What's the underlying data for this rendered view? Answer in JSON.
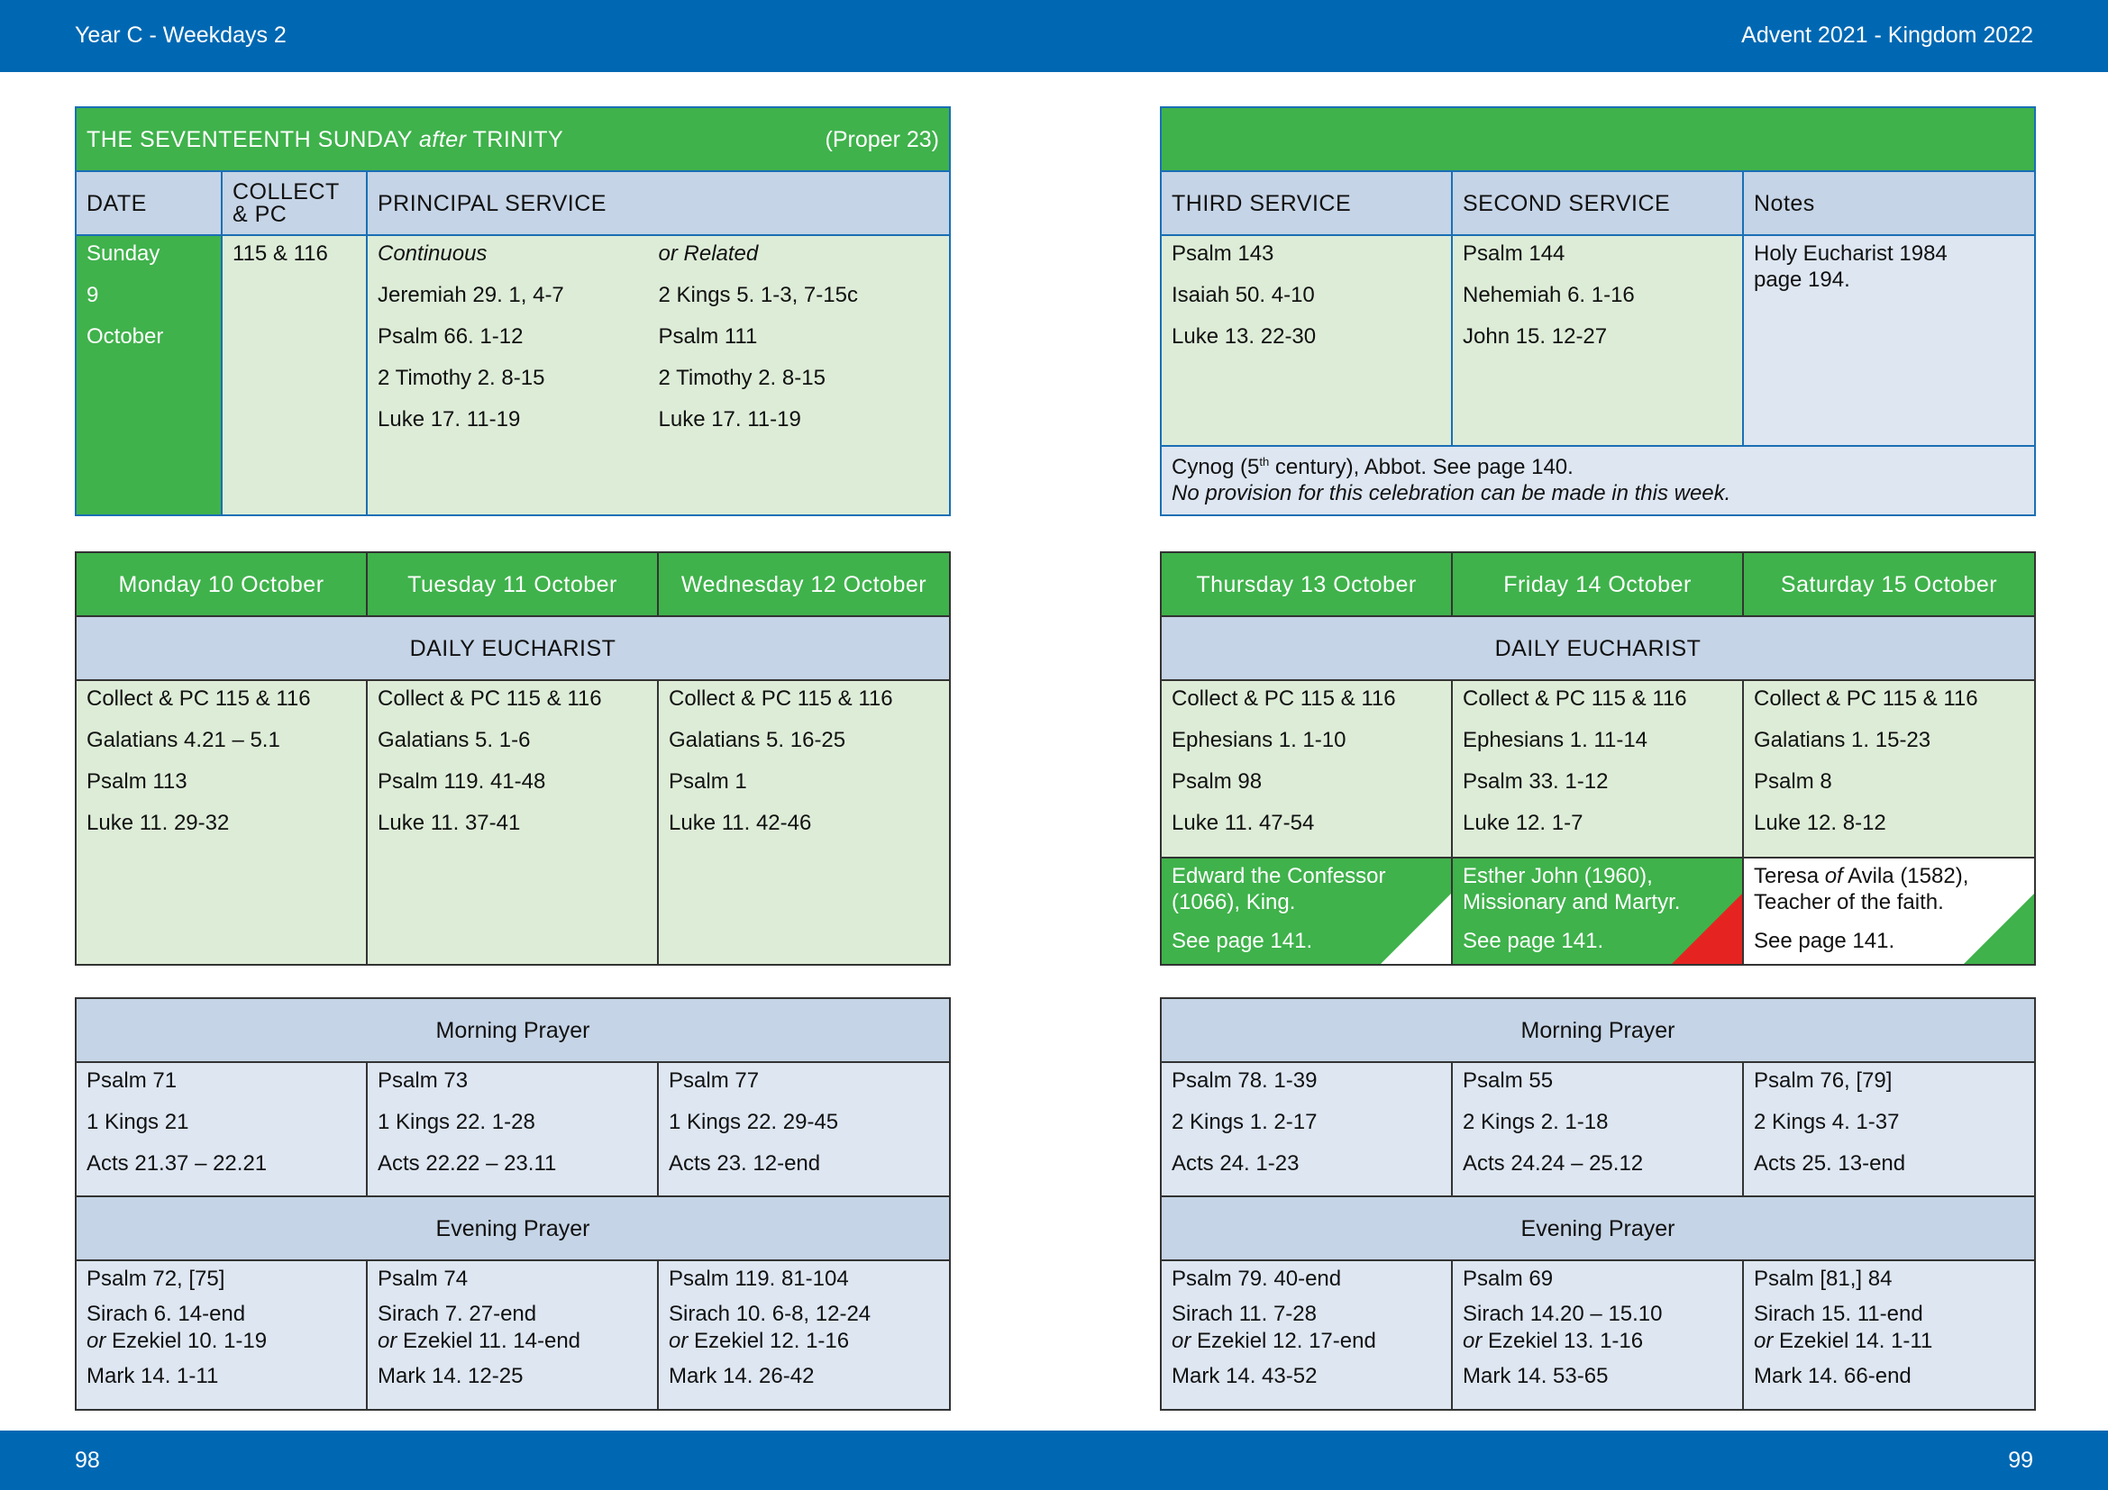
{
  "header": {
    "left": "Year C - Weekdays 2",
    "right": "Advent  2021 - Kingdom 2022"
  },
  "footer": {
    "left_page": "98",
    "right_page": "99"
  },
  "sunday": {
    "title_pre": "THE SEVENTEENTH SUNDAY ",
    "title_after": "after",
    "title_post": " TRINITY",
    "proper": "(Proper 23)",
    "col_date": "DATE",
    "col_collect_1": "COLLECT",
    "col_collect_2": "& PC",
    "col_principal": "PRINCIPAL SERVICE",
    "date_lines": [
      "Sunday",
      "9",
      "October"
    ],
    "collect": "115 & 116",
    "continuous_label": "Continuous",
    "related_label": "or Related",
    "continuous": [
      "Jeremiah 29. 1, 4-7",
      "Psalm 66. 1-12",
      "2 Timothy 2. 8-15",
      "Luke 17. 11-19"
    ],
    "related": [
      "2 Kings 5. 1-3, 7-15c",
      "Psalm 111",
      "2 Timothy 2. 8-15",
      "Luke 17. 11-19"
    ]
  },
  "sunday_right": {
    "col_third": "THIRD SERVICE",
    "col_second": "SECOND SERVICE",
    "col_notes": "Notes",
    "third": [
      "Psalm 143",
      "Isaiah 50. 4-10",
      "Luke 13. 22-30"
    ],
    "second": [
      "Psalm 144",
      "Nehemiah 6. 1-16",
      "John 15. 12-27"
    ],
    "notes": "Holy Eucharist 1984 page 194.",
    "cynog_pre": "Cynog (5",
    "cynog_sup": "th",
    "cynog_post": " century), Abbot. See page 140.",
    "cynog_note": "No provision for this celebration can be made in this week."
  },
  "daily_eucharist_label": "DAILY EUCHARIST",
  "morning_prayer_label": "Morning Prayer",
  "evening_prayer_label": "Evening Prayer",
  "days": [
    {
      "name": "Monday 10 October",
      "eucharist": [
        "Collect & PC 115 & 116",
        "Galatians 4.21 – 5.1",
        "Psalm 113",
        "Luke 11. 29-32"
      ],
      "mp": [
        "Psalm 71",
        "1 Kings 21",
        "Acts 21.37 – 22.21"
      ],
      "ep_psalm": "Psalm 72, [75]",
      "ep_reading1": "Sirach 6. 14-end",
      "ep_or": "or",
      "ep_reading2": " Ezekiel 10. 1-19",
      "ep_nt": "Mark 14. 1-11"
    },
    {
      "name": "Tuesday 11 October",
      "eucharist": [
        "Collect & PC 115 & 116",
        "Galatians 5. 1-6",
        "Psalm 119. 41-48",
        "Luke 11. 37-41"
      ],
      "mp": [
        "Psalm 73",
        "1 Kings 22. 1-28",
        "Acts 22.22 – 23.11"
      ],
      "ep_psalm": "Psalm 74",
      "ep_reading1": "Sirach 7. 27-end",
      "ep_or": "or",
      "ep_reading2": " Ezekiel 11. 14-end",
      "ep_nt": "Mark 14. 12-25"
    },
    {
      "name": "Wednesday 12 October",
      "eucharist": [
        "Collect & PC 115 & 116",
        "Galatians 5. 16-25",
        "Psalm 1",
        "Luke 11. 42-46"
      ],
      "mp": [
        "Psalm 77",
        "1 Kings 22. 29-45",
        "Acts 23. 12-end"
      ],
      "ep_psalm": "Psalm 119. 81-104",
      "ep_reading1": "Sirach 10. 6-8, 12-24",
      "ep_or": "or",
      "ep_reading2": " Ezekiel 12. 1-16",
      "ep_nt": "Mark 14. 26-42"
    },
    {
      "name": "Thursday 13 October",
      "eucharist": [
        "Collect & PC 115 & 116",
        "Ephesians 1. 1-10",
        "Psalm 98",
        "Luke 11. 47-54"
      ],
      "commem_1": "Edward the Confessor",
      "commem_2": "(1066), King.",
      "commem_see": "See page 141.",
      "mp": [
        "Psalm 78. 1-39",
        "2 Kings 1. 2-17",
        "Acts 24. 1-23"
      ],
      "ep_psalm": "Psalm 79. 40-end",
      "ep_reading1": "Sirach 11. 7-28",
      "ep_or": "or",
      "ep_reading2": " Ezekiel 12. 17-end",
      "ep_nt": "Mark 14. 43-52"
    },
    {
      "name": "Friday 14 October",
      "eucharist": [
        "Collect & PC 115 & 116",
        "Ephesians 1. 11-14",
        "Psalm 33. 1-12",
        "Luke 12. 1-7"
      ],
      "commem_1": "Esther John (1960),",
      "commem_2": "Missionary and Martyr.",
      "commem_see": "See page 141.",
      "mp": [
        "Psalm 55",
        "2 Kings 2. 1-18",
        "Acts 24.24 – 25.12"
      ],
      "ep_psalm": "Psalm 69",
      "ep_reading1": "Sirach 14.20 – 15.10",
      "ep_or": "or",
      "ep_reading2": " Ezekiel 13. 1-16",
      "ep_nt": "Mark 14. 53-65"
    },
    {
      "name": "Saturday 15 October",
      "eucharist": [
        "Collect & PC 115 & 116",
        "Galatians 1. 15-23",
        "Psalm 8",
        "Luke 12. 8-12"
      ],
      "commem_1a": "Teresa ",
      "commem_1b": "of",
      "commem_1c": " Avila (1582),",
      "commem_2": "Teacher of the faith.",
      "commem_see": "See page 141.",
      "mp": [
        "Psalm 76, [79]",
        "2 Kings 4. 1-37",
        "Acts 25. 13-end"
      ],
      "ep_psalm": "Psalm [81,] 84",
      "ep_reading1": "Sirach 15. 11-end",
      "ep_or": "or",
      "ep_reading2": " Ezekiel 14. 1-11",
      "ep_nt": "Mark 14. 66-end"
    }
  ],
  "colors": {
    "blue_bar": "#0068b3",
    "green": "#3fb24b",
    "light_green": "#ddecd7",
    "light_blue": "#dde6f1",
    "header_blue": "#c5d4e6",
    "red": "#e52421"
  }
}
